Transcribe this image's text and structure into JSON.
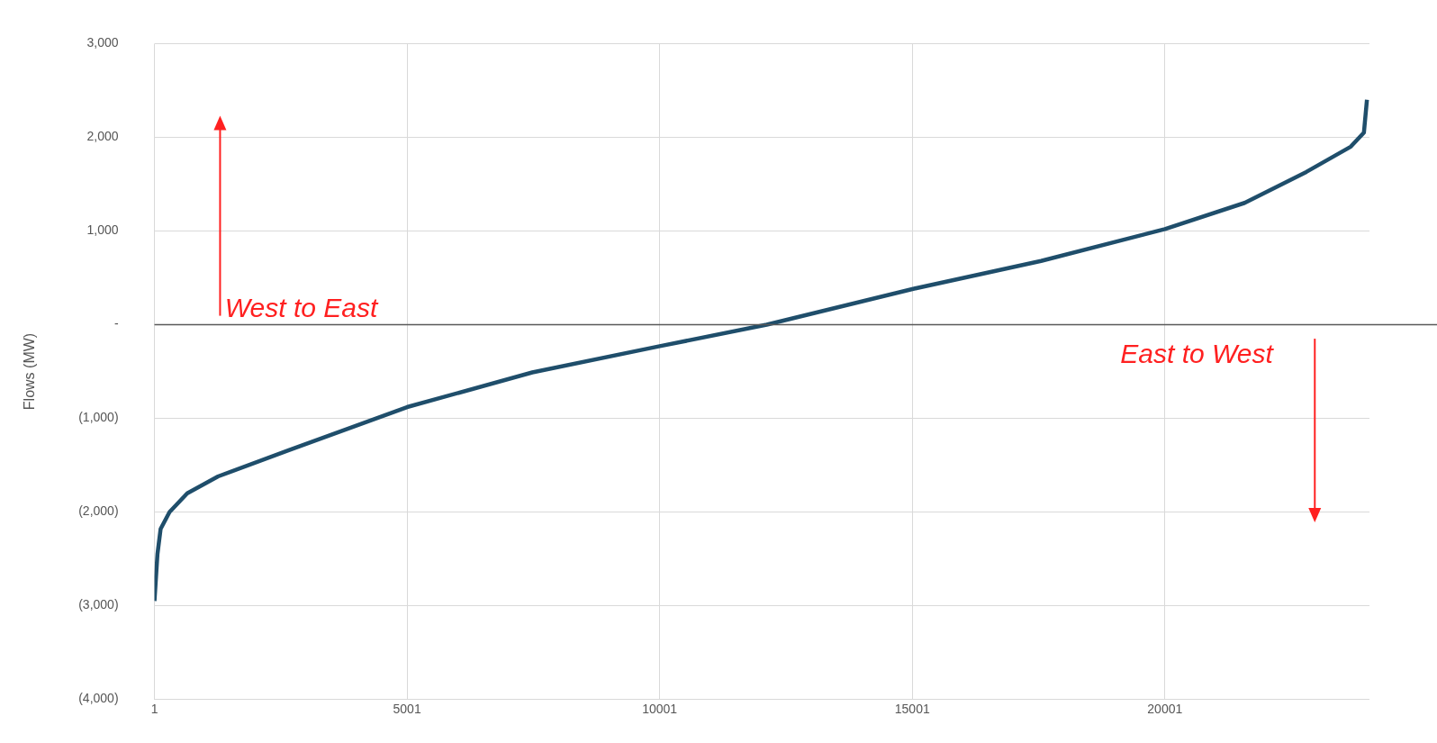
{
  "chart_data": {
    "type": "line",
    "ylabel": "Flows (MW)",
    "x": [
      1,
      60,
      123,
      300,
      650,
      1260,
      2660,
      5001,
      7480,
      10001,
      12120,
      15001,
      17550,
      20001,
      21580,
      22800,
      23680,
      23940,
      24000
    ],
    "series": [
      {
        "color": "#1f4e6b",
        "values": [
          -2950,
          -2450,
          -2180,
          -2000,
          -1800,
          -1620,
          -1340,
          -880,
          -510,
          -230,
          0,
          380,
          680,
          1020,
          1300,
          1630,
          1900,
          2050,
          2400
        ]
      }
    ],
    "xlim": [
      1,
      24050
    ],
    "xticks": [
      1,
      5001,
      10001,
      15001,
      20001
    ],
    "ylim": [
      -4000,
      3000
    ],
    "yticks": [
      {
        "value": -4000,
        "label": "(4,000)"
      },
      {
        "value": -3000,
        "label": "(3,000)"
      },
      {
        "value": -2000,
        "label": "(2,000)"
      },
      {
        "value": -1000,
        "label": "(1,000)"
      },
      {
        "value": 0,
        "label": "-"
      },
      {
        "value": 1000,
        "label": "1,000"
      },
      {
        "value": 2000,
        "label": "2,000"
      },
      {
        "value": 3000,
        "label": "3,000"
      }
    ],
    "grid": true,
    "marker": "none",
    "line_style": "solid",
    "legend": false,
    "ref_lines": [
      {
        "axis": "y",
        "value": 0,
        "color": "#595959"
      }
    ],
    "annotations": [
      "West to East",
      "East to West"
    ]
  }
}
